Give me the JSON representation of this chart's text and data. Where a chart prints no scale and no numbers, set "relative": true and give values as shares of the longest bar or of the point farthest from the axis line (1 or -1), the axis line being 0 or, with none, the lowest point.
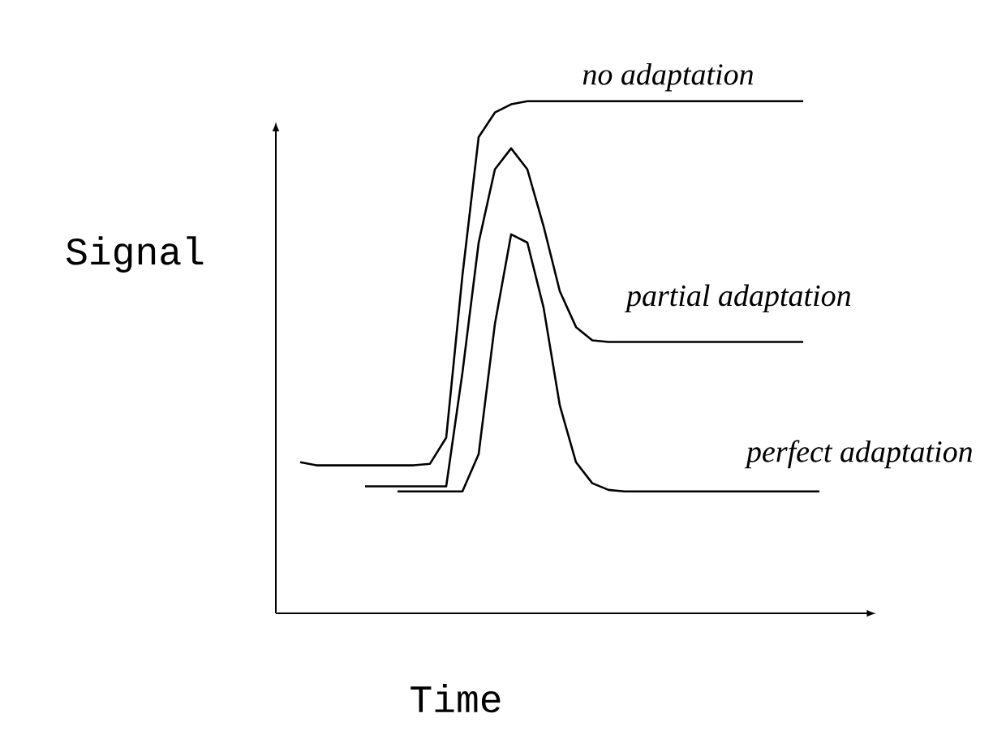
{
  "chart_data": {
    "type": "line",
    "relative": true,
    "xlabel": "Time",
    "ylabel": "Signal",
    "categories": [
      null,
      null,
      null,
      null,
      null,
      null,
      null,
      null,
      null,
      null,
      null,
      null,
      null,
      null,
      null,
      null,
      null,
      null,
      null,
      null,
      null,
      null,
      null,
      null,
      null,
      null,
      null,
      null,
      null,
      null,
      null,
      null,
      null
    ],
    "series": [
      {
        "name": "no adaptation",
        "color": "#000000",
        "values": [
          0.295,
          0.289,
          0.289,
          0.289,
          0.289,
          0.289,
          0.289,
          0.289,
          0.292,
          0.343,
          0.66,
          0.93,
          0.978,
          0.994,
          1,
          1,
          1,
          1,
          1,
          1,
          1,
          1,
          1,
          1,
          1,
          1,
          1,
          1,
          1,
          1,
          1,
          1,
          null
        ]
      },
      {
        "name": "partial adaptation",
        "color": "#000000",
        "values": [
          null,
          null,
          null,
          null,
          0.248,
          0.248,
          0.248,
          0.248,
          0.248,
          0.248,
          0.47,
          0.724,
          0.867,
          0.908,
          0.867,
          0.756,
          0.629,
          0.559,
          0.533,
          0.53,
          0.53,
          0.53,
          0.53,
          0.53,
          0.53,
          0.53,
          0.53,
          0.53,
          0.53,
          0.53,
          0.53,
          0.53,
          null
        ]
      },
      {
        "name": "perfect adaptation",
        "color": "#000000",
        "values": [
          null,
          null,
          null,
          null,
          null,
          null,
          0.238,
          0.238,
          0.238,
          0.238,
          0.238,
          0.311,
          0.565,
          0.74,
          0.724,
          0.597,
          0.406,
          0.295,
          0.254,
          0.241,
          0.238,
          0.238,
          0.238,
          0.238,
          0.238,
          0.238,
          0.238,
          0.238,
          0.238,
          0.238,
          0.238,
          0.238,
          0.238
        ]
      }
    ]
  }
}
